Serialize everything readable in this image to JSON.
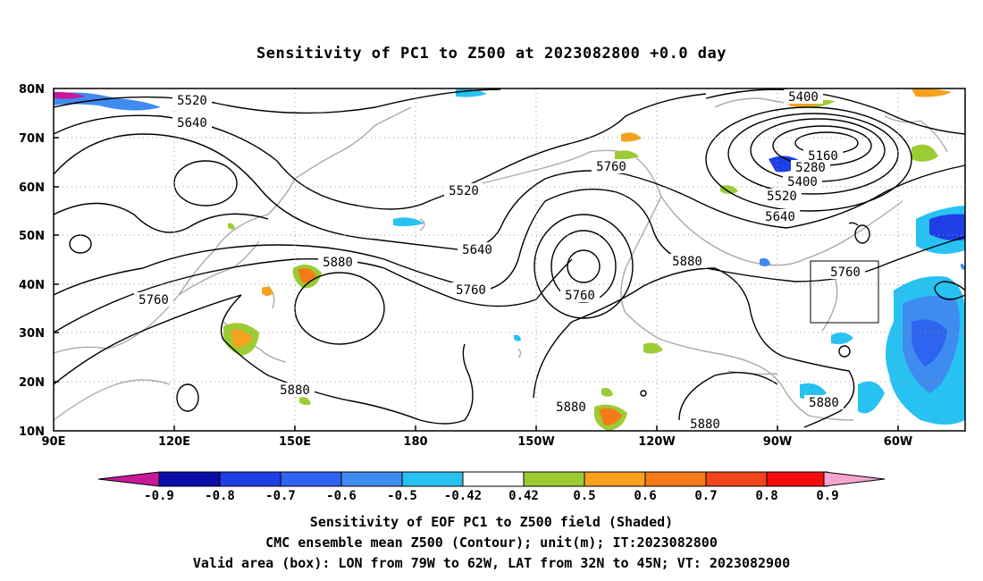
{
  "title": "Sensitivity of PC1 to Z500 at 2023082800 +0.0 day",
  "lat_labels": [
    "80N",
    "70N",
    "60N",
    "50N",
    "40N",
    "30N",
    "20N",
    "10N"
  ],
  "lon_labels": [
    "90E",
    "120E",
    "150E",
    "180",
    "150W",
    "120W",
    "90W",
    "60W"
  ],
  "contour_labels": [
    "5520",
    "5640",
    "5520",
    "5760",
    "5400",
    "5160",
    "5280",
    "5400",
    "5520",
    "5640",
    "5640",
    "5880",
    "5760",
    "5760",
    "5760",
    "5880",
    "5760",
    "5880",
    "5880",
    "5880",
    "5880"
  ],
  "colorbar": {
    "ticks": [
      "-0.9",
      "-0.8",
      "-0.7",
      "-0.6",
      "-0.5",
      "-0.42",
      "0.42",
      "0.5",
      "0.6",
      "0.7",
      "0.8",
      "0.9"
    ],
    "colors": [
      "#0c0ca8",
      "#1f3fe6",
      "#2e64f0",
      "#3f8cf0",
      "#27c2f2",
      "#ffffff",
      "#9ccc34",
      "#f7a11d",
      "#f57a18",
      "#f2451c",
      "#f50d0d"
    ],
    "low_color": "#c8199a",
    "high_color": "#f4a6d0"
  },
  "captions": [
    "Sensitivity of EOF PC1 to Z500 field (Shaded)",
    "CMC ensemble mean Z500 (Contour); unit(m); IT:2023082800",
    "Valid area (box): LON from 79W to 62W, LAT from 32N to 45N; VT: 2023082900"
  ]
}
